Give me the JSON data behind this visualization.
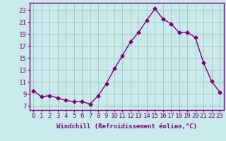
{
  "x": [
    0,
    1,
    2,
    3,
    4,
    5,
    6,
    7,
    8,
    9,
    10,
    11,
    12,
    13,
    14,
    15,
    16,
    17,
    18,
    19,
    20,
    21,
    22,
    23
  ],
  "y": [
    9.5,
    8.5,
    8.7,
    8.3,
    7.9,
    7.7,
    7.7,
    7.3,
    8.7,
    10.7,
    13.2,
    15.4,
    17.7,
    19.3,
    21.3,
    23.2,
    21.5,
    20.7,
    19.2,
    19.3,
    18.4,
    14.2,
    11.1,
    9.3
  ],
  "line_color": "#800080",
  "marker": "D",
  "marker_size": 2.5,
  "bg_color": "#c8eaea",
  "grid_color": "#a0b8b8",
  "xlabel": "Windchill (Refroidissement éolien,°C)",
  "xlabel_fontsize": 6.5,
  "ylabel_ticks": [
    7,
    9,
    11,
    13,
    15,
    17,
    19,
    21,
    23
  ],
  "xlim": [
    -0.5,
    23.5
  ],
  "ylim": [
    6.3,
    24.2
  ],
  "tick_fontsize": 6.5,
  "line_color_hex": "#800080"
}
